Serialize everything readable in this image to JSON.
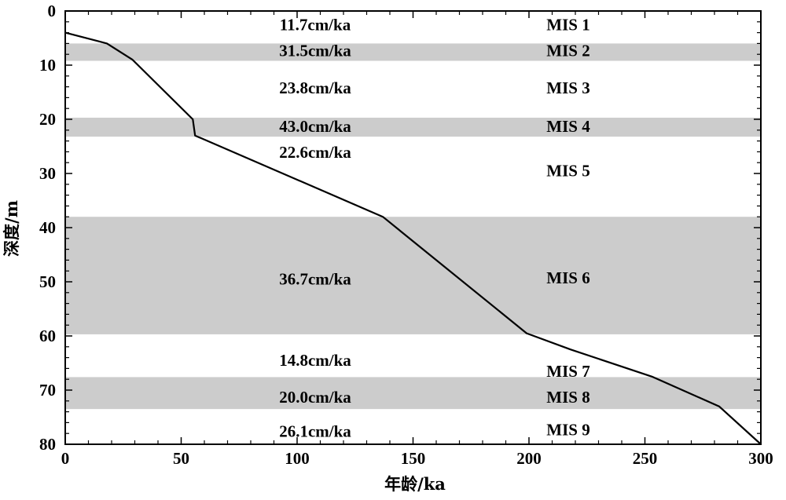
{
  "chart_data": {
    "type": "line",
    "xlabel": "年龄/ka",
    "ylabel": "深度/m",
    "xlim": [
      0,
      300
    ],
    "ylim": [
      0,
      80
    ],
    "y_inverted": true,
    "x_ticks": [
      0,
      50,
      100,
      150,
      200,
      250,
      300
    ],
    "y_ticks": [
      0,
      10,
      20,
      30,
      40,
      50,
      60,
      70,
      80
    ],
    "grid": false,
    "band_color": "#cccccc",
    "line_color": "#000000",
    "series": [
      {
        "x": [
          0,
          18,
          29,
          55,
          56,
          137,
          199,
          218,
          253,
          282,
          300
        ],
        "y": [
          4,
          6,
          9,
          20,
          23,
          38,
          59.5,
          62.5,
          67.5,
          73,
          80
        ]
      }
    ],
    "shaded_bands": [
      {
        "from": 6,
        "to": 9.2,
        "stage": "MIS 2"
      },
      {
        "from": 19.7,
        "to": 23.2,
        "stage": "MIS 4"
      },
      {
        "from": 38,
        "to": 59.7,
        "stage": "MIS 6"
      },
      {
        "from": 67.6,
        "to": 73.5,
        "stage": "MIS 8"
      }
    ],
    "rate_labels": [
      {
        "text": "11.7cm/ka",
        "depth": 2.5
      },
      {
        "text": "31.5cm/ka",
        "depth": 7.3
      },
      {
        "text": "23.8cm/ka",
        "depth": 14.2
      },
      {
        "text": "43.0cm/ka",
        "depth": 21.3
      },
      {
        "text": "22.6cm/ka",
        "depth": 26.1
      },
      {
        "text": "36.7cm/ka",
        "depth": 49.5
      },
      {
        "text": "14.8cm/ka",
        "depth": 64.5
      },
      {
        "text": "20.0cm/ka",
        "depth": 71.3
      },
      {
        "text": "26.1cm/ka",
        "depth": 77.6
      }
    ],
    "stage_labels": [
      {
        "text": "MIS 1",
        "depth": 2.5
      },
      {
        "text": "MIS 2",
        "depth": 7.3
      },
      {
        "text": "MIS 3",
        "depth": 14.2
      },
      {
        "text": "MIS 4",
        "depth": 21.3
      },
      {
        "text": "MIS 5",
        "depth": 29.5
      },
      {
        "text": "MIS 6",
        "depth": 49.3
      },
      {
        "text": "MIS 7",
        "depth": 66.5
      },
      {
        "text": "MIS 8",
        "depth": 71.3
      },
      {
        "text": "MIS 9",
        "depth": 77.3
      }
    ]
  }
}
